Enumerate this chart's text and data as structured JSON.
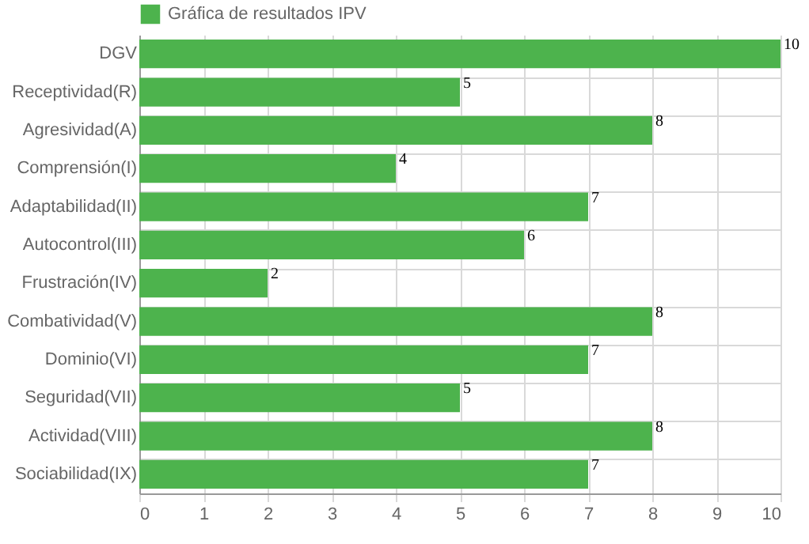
{
  "chart_data": {
    "type": "bar",
    "orientation": "horizontal",
    "categories": [
      "DGV",
      "Receptividad(R)",
      "Agresividad(A)",
      "Comprensión(I)",
      "Adaptabilidad(II)",
      "Autocontrol(III)",
      "Frustración(IV)",
      "Combatividad(V)",
      "Dominio(VI)",
      "Seguridad(VII)",
      "Actividad(VIII)",
      "Sociabilidad(IX)"
    ],
    "series": [
      {
        "name": "Gráfica de resultados IPV",
        "color": "#4db34d",
        "values": [
          10,
          5,
          8,
          4,
          7,
          6,
          2,
          8,
          7,
          5,
          8,
          7
        ]
      }
    ],
    "xlim": [
      0,
      10
    ],
    "xticks": [
      0,
      1,
      2,
      3,
      4,
      5,
      6,
      7,
      8,
      9,
      10
    ],
    "grid": true,
    "legend": "top",
    "data_labels": true
  }
}
